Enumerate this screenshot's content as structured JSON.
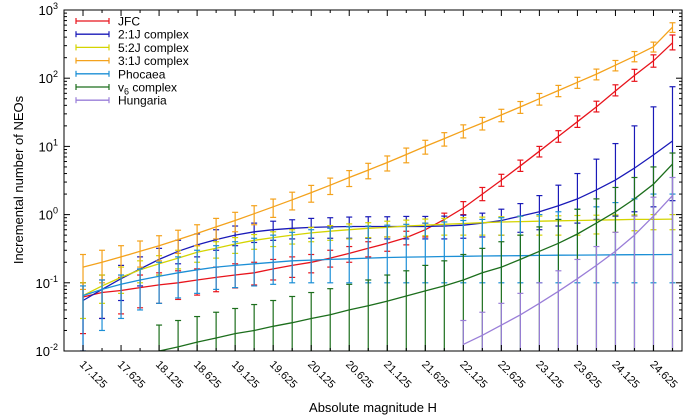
{
  "chart_data": {
    "type": "line",
    "title": "",
    "xlabel": "Absolute magnitude H",
    "ylabel": "Incremental number of NEOs",
    "yscale": "log",
    "ylim": [
      0.01,
      1000
    ],
    "y_ticks": [
      {
        "value": 0.01,
        "label": "10",
        "exp": "-2"
      },
      {
        "value": 0.1,
        "label": "10",
        "exp": "-1"
      },
      {
        "value": 1,
        "label": "10",
        "exp": "0"
      },
      {
        "value": 10,
        "label": "10",
        "exp": "1"
      },
      {
        "value": 100,
        "label": "10",
        "exp": "2"
      },
      {
        "value": 1000,
        "label": "10",
        "exp": "3"
      }
    ],
    "x_tick_labels": [
      "17.125",
      "17.625",
      "18.125",
      "18.625",
      "19.125",
      "19.625",
      "20.125",
      "20.625",
      "21.125",
      "21.625",
      "22.125",
      "22.625",
      "23.125",
      "23.625",
      "24.125",
      "24.625"
    ],
    "xlim": [
      16.875,
      25.0
    ],
    "grid": false,
    "legend_position": "top-left",
    "series": [
      {
        "name": "JFC",
        "color": "#e8141c",
        "x": [
          17.125,
          17.375,
          17.625,
          17.875,
          18.125,
          18.375,
          18.625,
          18.875,
          19.125,
          19.375,
          19.625,
          19.875,
          20.125,
          20.375,
          20.625,
          20.875,
          21.125,
          21.375,
          21.625,
          21.875,
          22.125,
          22.375,
          22.625,
          22.875,
          23.125,
          23.375,
          23.625,
          23.875,
          24.125,
          24.375,
          24.625,
          24.875
        ],
        "y": [
          0.062,
          0.072,
          0.077,
          0.085,
          0.093,
          0.1,
          0.11,
          0.12,
          0.13,
          0.14,
          0.16,
          0.18,
          0.2,
          0.23,
          0.27,
          0.32,
          0.38,
          0.46,
          0.6,
          0.85,
          1.25,
          2.0,
          3.2,
          5.2,
          8.5,
          14,
          23,
          38,
          65,
          110,
          180,
          330
        ],
        "lo": [
          0.018,
          0.03,
          0.035,
          0.043,
          0.05,
          0.057,
          0.066,
          0.074,
          0.084,
          0.093,
          0.11,
          0.12,
          0.14,
          0.17,
          0.2,
          0.24,
          0.29,
          0.36,
          0.47,
          0.68,
          1.0,
          1.6,
          2.6,
          4.3,
          7.0,
          11.5,
          19,
          32,
          55,
          90,
          145,
          260
        ],
        "hi": [
          0.1,
          0.11,
          0.12,
          0.13,
          0.14,
          0.15,
          0.16,
          0.17,
          0.19,
          0.2,
          0.22,
          0.24,
          0.26,
          0.3,
          0.34,
          0.4,
          0.47,
          0.57,
          0.75,
          1.05,
          1.55,
          2.5,
          3.9,
          6.3,
          10,
          17,
          28,
          46,
          80,
          135,
          220,
          430
        ]
      },
      {
        "name": "2:1J complex",
        "color": "#1a1ab8",
        "x": [
          17.125,
          17.375,
          17.625,
          17.875,
          18.125,
          18.375,
          18.625,
          18.875,
          19.125,
          19.375,
          19.625,
          19.875,
          20.125,
          20.375,
          20.625,
          20.875,
          21.125,
          21.375,
          21.625,
          21.875,
          22.125,
          22.375,
          22.625,
          22.875,
          23.125,
          23.375,
          23.625,
          23.875,
          24.125,
          24.375,
          24.625,
          24.875
        ],
        "y": [
          0.055,
          0.08,
          0.115,
          0.16,
          0.22,
          0.29,
          0.36,
          0.43,
          0.5,
          0.56,
          0.6,
          0.63,
          0.65,
          0.66,
          0.67,
          0.67,
          0.67,
          0.67,
          0.67,
          0.68,
          0.7,
          0.75,
          0.82,
          0.95,
          1.1,
          1.35,
          1.7,
          2.3,
          3.2,
          4.8,
          7.5,
          12
        ],
        "lo": [
          0.01,
          0.03,
          0.055,
          0.09,
          0.13,
          0.19,
          0.24,
          0.3,
          0.35,
          0.39,
          0.42,
          0.44,
          0.45,
          0.45,
          0.45,
          0.45,
          0.44,
          0.44,
          0.44,
          0.44,
          0.45,
          0.47,
          0.5,
          0.55,
          0.6,
          0.68,
          0.75,
          0.85,
          0.95,
          1.1,
          1.3,
          1.6
        ],
        "hi": [
          0.1,
          0.13,
          0.18,
          0.24,
          0.32,
          0.42,
          0.52,
          0.6,
          0.68,
          0.75,
          0.8,
          0.84,
          0.88,
          0.9,
          0.92,
          0.93,
          0.93,
          0.94,
          0.94,
          0.95,
          0.98,
          1.05,
          1.2,
          1.45,
          1.9,
          2.7,
          4.0,
          6.5,
          11,
          20,
          38,
          75
        ]
      },
      {
        "name": "5:2J complex",
        "color": "#d4d400",
        "x": [
          17.125,
          17.375,
          17.625,
          17.875,
          18.125,
          18.375,
          18.625,
          18.875,
          19.125,
          19.375,
          19.625,
          19.875,
          20.125,
          20.375,
          20.625,
          20.875,
          21.125,
          21.375,
          21.625,
          21.875,
          22.125,
          22.375,
          22.625,
          22.875,
          23.125,
          23.375,
          23.625,
          23.875,
          24.125,
          24.375,
          24.625,
          24.875
        ],
        "y": [
          0.065,
          0.09,
          0.12,
          0.155,
          0.19,
          0.23,
          0.28,
          0.32,
          0.37,
          0.42,
          0.46,
          0.5,
          0.54,
          0.57,
          0.6,
          0.63,
          0.65,
          0.68,
          0.7,
          0.72,
          0.74,
          0.76,
          0.78,
          0.79,
          0.8,
          0.81,
          0.82,
          0.83,
          0.84,
          0.85,
          0.85,
          0.86
        ],
        "lo": [
          0.03,
          0.05,
          0.07,
          0.1,
          0.13,
          0.16,
          0.2,
          0.23,
          0.27,
          0.31,
          0.34,
          0.37,
          0.4,
          0.42,
          0.44,
          0.46,
          0.47,
          0.48,
          0.49,
          0.5,
          0.5,
          0.5,
          0.5,
          0.5,
          0.5,
          0.5,
          0.5,
          0.52,
          0.55,
          0.58,
          0.6,
          0.6
        ],
        "hi": [
          0.1,
          0.13,
          0.17,
          0.21,
          0.25,
          0.3,
          0.35,
          0.4,
          0.46,
          0.51,
          0.56,
          0.6,
          0.65,
          0.69,
          0.73,
          0.76,
          0.8,
          0.83,
          0.86,
          0.88,
          0.9,
          0.92,
          0.93,
          0.94,
          0.95,
          0.96,
          0.97,
          0.98,
          0.99,
          0.99,
          1.0,
          1.0
        ]
      },
      {
        "name": "3:1J complex",
        "color": "#f4a21c",
        "x": [
          17.125,
          17.375,
          17.625,
          17.875,
          18.125,
          18.375,
          18.625,
          18.875,
          19.125,
          19.375,
          19.625,
          19.875,
          20.125,
          20.375,
          20.625,
          20.875,
          21.125,
          21.375,
          21.625,
          21.875,
          22.125,
          22.375,
          22.625,
          22.875,
          23.125,
          23.375,
          23.625,
          23.875,
          24.125,
          24.375,
          24.625,
          24.875
        ],
        "y": [
          0.17,
          0.2,
          0.24,
          0.29,
          0.35,
          0.43,
          0.53,
          0.66,
          0.82,
          1.03,
          1.3,
          1.65,
          2.1,
          2.7,
          3.5,
          4.5,
          5.8,
          7.6,
          10,
          13,
          17,
          22,
          29,
          38,
          50,
          66,
          87,
          115,
          155,
          210,
          290,
          560
        ],
        "lo": [
          0.08,
          0.1,
          0.13,
          0.17,
          0.21,
          0.27,
          0.35,
          0.44,
          0.56,
          0.71,
          0.91,
          1.17,
          1.52,
          1.97,
          2.58,
          3.35,
          4.36,
          5.75,
          7.7,
          10.1,
          13.3,
          17.4,
          23,
          30.5,
          40.3,
          53.6,
          71,
          94.5,
          128,
          174,
          242,
          470
        ],
        "hi": [
          0.26,
          0.3,
          0.35,
          0.41,
          0.49,
          0.59,
          0.71,
          0.88,
          1.08,
          1.35,
          1.69,
          2.13,
          2.68,
          3.43,
          4.42,
          5.65,
          7.24,
          9.45,
          12.3,
          15.9,
          20.7,
          26.6,
          35,
          45.5,
          59.7,
          78.4,
          103,
          136,
          182,
          246,
          338,
          650
        ]
      },
      {
        "name": "Phocaea",
        "color": "#1c8fd6",
        "x": [
          17.125,
          17.375,
          17.625,
          17.875,
          18.125,
          18.375,
          18.625,
          18.875,
          19.125,
          19.375,
          19.625,
          19.875,
          20.125,
          20.375,
          20.625,
          20.875,
          21.125,
          21.375,
          21.625,
          21.875,
          22.125,
          22.375,
          22.625,
          22.875,
          23.125,
          23.375,
          23.625,
          23.875,
          24.125,
          24.375,
          24.625,
          24.875
        ],
        "y": [
          0.065,
          0.08,
          0.095,
          0.11,
          0.125,
          0.14,
          0.155,
          0.17,
          0.18,
          0.19,
          0.2,
          0.21,
          0.215,
          0.22,
          0.225,
          0.23,
          0.235,
          0.238,
          0.24,
          0.243,
          0.245,
          0.247,
          0.249,
          0.25,
          0.252,
          0.254,
          0.255,
          0.256,
          0.257,
          0.258,
          0.259,
          0.26
        ],
        "lo": [
          0.01,
          0.02,
          0.03,
          0.04,
          0.05,
          0.06,
          0.07,
          0.08,
          0.085,
          0.09,
          0.095,
          0.1,
          0.1,
          0.1,
          0.1,
          0.1,
          0.1,
          0.1,
          0.1,
          0.1,
          0.1,
          0.1,
          0.1,
          0.1,
          0.1,
          0.1,
          0.1,
          0.1,
          0.1,
          0.1,
          0.1,
          0.1
        ],
        "hi": [
          0.09,
          0.11,
          0.13,
          0.16,
          0.2,
          0.24,
          0.3,
          0.35,
          0.4,
          0.45,
          0.5,
          0.55,
          0.6,
          0.63,
          0.66,
          0.68,
          0.7,
          0.72,
          0.75,
          0.78,
          0.82,
          0.85,
          0.9,
          0.95,
          1.0,
          1.1,
          1.2,
          1.3,
          1.5,
          1.7,
          2.0,
          2.0
        ]
      },
      {
        "name": "v6 complex",
        "name_base": "v",
        "name_sub": "6",
        "name_rest": " complex",
        "color": "#1c6e1c",
        "x": [
          18.125,
          18.375,
          18.625,
          18.875,
          19.125,
          19.375,
          19.625,
          19.875,
          20.125,
          20.375,
          20.625,
          20.875,
          21.125,
          21.375,
          21.625,
          21.875,
          22.125,
          22.375,
          22.625,
          22.875,
          23.125,
          23.375,
          23.625,
          23.875,
          24.125,
          24.375,
          24.625,
          24.875
        ],
        "y": [
          0.01,
          0.0115,
          0.0135,
          0.0155,
          0.018,
          0.02,
          0.023,
          0.026,
          0.03,
          0.034,
          0.04,
          0.046,
          0.054,
          0.064,
          0.076,
          0.09,
          0.11,
          0.14,
          0.17,
          0.22,
          0.29,
          0.38,
          0.52,
          0.75,
          1.1,
          1.7,
          2.8,
          5.5
        ],
        "lo": [
          0.001,
          0.001,
          0.001,
          0.001,
          0.001,
          0.001,
          0.001,
          0.001,
          0.001,
          0.001,
          0.001,
          0.001,
          0.001,
          0.001,
          0.001,
          0.001,
          0.001,
          0.001,
          0.001,
          0.001,
          0.001,
          0.001,
          0.001,
          0.001,
          0.001,
          0.001,
          0.001,
          0.001
        ],
        "hi": [
          0.024,
          0.028,
          0.032,
          0.037,
          0.042,
          0.048,
          0.055,
          0.063,
          0.072,
          0.082,
          0.095,
          0.11,
          0.13,
          0.15,
          0.18,
          0.21,
          0.26,
          0.32,
          0.4,
          0.5,
          0.66,
          0.85,
          1.2,
          1.7,
          2.5,
          3.5,
          5.0,
          8.0
        ]
      },
      {
        "name": "Hungaria",
        "color": "#9a7ed8",
        "x": [
          22.125,
          22.375,
          22.625,
          22.875,
          23.125,
          23.375,
          23.625,
          23.875,
          24.125,
          24.375,
          24.625,
          24.875
        ],
        "y": [
          0.0125,
          0.017,
          0.024,
          0.034,
          0.05,
          0.075,
          0.115,
          0.18,
          0.29,
          0.5,
          0.95,
          1.9
        ],
        "lo": [
          0.001,
          0.001,
          0.001,
          0.001,
          0.001,
          0.001,
          0.001,
          0.001,
          0.001,
          0.001,
          0.001,
          0.001
        ],
        "hi": [
          0.028,
          0.037,
          0.05,
          0.07,
          0.1,
          0.15,
          0.22,
          0.34,
          0.55,
          0.95,
          1.8,
          3.5
        ]
      }
    ]
  }
}
